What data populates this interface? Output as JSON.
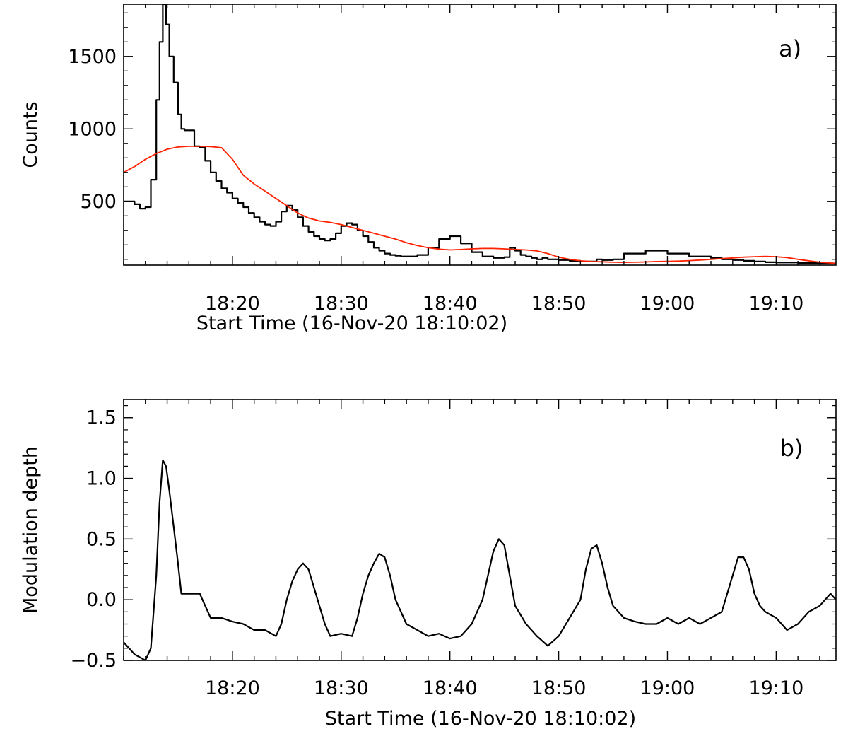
{
  "chart_data": [
    {
      "type": "line",
      "panel_label": "a)",
      "xlabel": "Start Time (16-Nov-20 18:10:02)",
      "ylabel": "Counts",
      "x_unit": "minutes after 18:10",
      "xlim": [
        0,
        65.5
      ],
      "ylim": [
        60,
        1860
      ],
      "x_ticks": [
        {
          "value": 10,
          "label": "18:20"
        },
        {
          "value": 20,
          "label": "18:30"
        },
        {
          "value": 30,
          "label": "18:40"
        },
        {
          "value": 40,
          "label": "18:50"
        },
        {
          "value": 50,
          "label": "19:00"
        },
        {
          "value": 60,
          "label": "19:10"
        }
      ],
      "y_ticks": [
        {
          "value": 500,
          "label": "500"
        },
        {
          "value": 1000,
          "label": "1000"
        },
        {
          "value": 1500,
          "label": "1500"
        }
      ],
      "series": [
        {
          "color": "#000000",
          "style": "step",
          "x": [
            0,
            1,
            1.5,
            2,
            2.5,
            3,
            3.3,
            3.6,
            3.9,
            4.2,
            4.6,
            5.0,
            5.3,
            5.6,
            6.0,
            6.5,
            7.0,
            7.5,
            8.0,
            8.5,
            9.0,
            9.5,
            10.0,
            10.5,
            11.0,
            11.5,
            12.0,
            12.5,
            13.0,
            13.5,
            14.0,
            14.5,
            15.0,
            15.5,
            16.0,
            16.5,
            17.0,
            17.5,
            18.0,
            18.5,
            19.0,
            19.5,
            20.0,
            20.5,
            21.0,
            21.5,
            22.0,
            22.5,
            23.0,
            23.5,
            24.0,
            24.5,
            25.0,
            25.5,
            26.0,
            27.0,
            28.0,
            29.0,
            30.0,
            31.0,
            32.0,
            33.0,
            34.0,
            35.0,
            35.5,
            36.0,
            36.5,
            37.0,
            37.5,
            38.0,
            38.5,
            39.0,
            40.0,
            41.0,
            42.0,
            43.0,
            43.5,
            44.0,
            45.0,
            46.0,
            48.0,
            50.0,
            52.0,
            54.0,
            55.0,
            56.0,
            57.0,
            58.0,
            59.0,
            60.0,
            62.0,
            64.0,
            65.5
          ],
          "y": [
            500,
            480,
            450,
            460,
            650,
            1200,
            1600,
            1860,
            1720,
            1500,
            1320,
            1100,
            1000,
            990,
            990,
            880,
            870,
            780,
            700,
            640,
            590,
            560,
            520,
            490,
            460,
            420,
            390,
            360,
            340,
            330,
            360,
            430,
            470,
            440,
            390,
            330,
            290,
            260,
            240,
            230,
            240,
            280,
            330,
            350,
            340,
            300,
            260,
            220,
            180,
            160,
            140,
            130,
            125,
            120,
            120,
            130,
            180,
            240,
            260,
            210,
            150,
            120,
            110,
            115,
            180,
            160,
            130,
            120,
            110,
            100,
            110,
            100,
            95,
            90,
            85,
            85,
            100,
            95,
            100,
            140,
            160,
            140,
            120,
            110,
            100,
            95,
            90,
            85,
            80,
            78,
            75,
            72,
            70
          ]
        },
        {
          "color": "#ff2200",
          "style": "smooth",
          "x": [
            0,
            1,
            2,
            3,
            4,
            5,
            6,
            7,
            8,
            9,
            10,
            11,
            12,
            13,
            14,
            15,
            16,
            17,
            18,
            19,
            20,
            21,
            22,
            23,
            24,
            25,
            26,
            27,
            28,
            29,
            30,
            31,
            32,
            33,
            34,
            35,
            36,
            37,
            38,
            39,
            40,
            41,
            42,
            43,
            44,
            45,
            46,
            47,
            48,
            49,
            50,
            51,
            52,
            53,
            54,
            55,
            56,
            57,
            58,
            59,
            60,
            61,
            62,
            63,
            64,
            65.5
          ],
          "y": [
            700,
            740,
            790,
            830,
            860,
            875,
            880,
            880,
            878,
            870,
            790,
            680,
            620,
            570,
            520,
            470,
            420,
            385,
            365,
            355,
            340,
            320,
            300,
            280,
            260,
            240,
            215,
            195,
            180,
            170,
            165,
            168,
            172,
            175,
            175,
            172,
            168,
            165,
            158,
            140,
            115,
            100,
            90,
            85,
            83,
            80,
            79,
            80,
            82,
            85,
            86,
            88,
            91,
            95,
            100,
            105,
            110,
            115,
            118,
            120,
            118,
            112,
            100,
            90,
            80,
            72
          ]
        }
      ]
    },
    {
      "type": "line",
      "panel_label": "b)",
      "xlabel": "Start Time (16-Nov-20 18:10:02)",
      "ylabel": "Modulation depth",
      "x_unit": "minutes after 18:10",
      "xlim": [
        0,
        65.5
      ],
      "ylim": [
        -0.5,
        1.65
      ],
      "x_ticks": [
        {
          "value": 10,
          "label": "18:20"
        },
        {
          "value": 20,
          "label": "18:30"
        },
        {
          "value": 30,
          "label": "18:40"
        },
        {
          "value": 40,
          "label": "18:50"
        },
        {
          "value": 50,
          "label": "19:00"
        },
        {
          "value": 60,
          "label": "19:10"
        }
      ],
      "y_ticks": [
        {
          "value": -0.5,
          "label": "−0.5"
        },
        {
          "value": 0.0,
          "label": "0.0"
        },
        {
          "value": 0.5,
          "label": "0.5"
        },
        {
          "value": 1.0,
          "label": "1.0"
        },
        {
          "value": 1.5,
          "label": "1.5"
        }
      ],
      "series": [
        {
          "color": "#000000",
          "style": "line",
          "x": [
            0,
            1,
            2,
            2.5,
            3,
            3.3,
            3.6,
            3.9,
            4.2,
            4.6,
            5.0,
            5.3,
            5.6,
            6.0,
            6.5,
            7.0,
            7.5,
            8.0,
            9.0,
            10.0,
            11.0,
            12.0,
            13.0,
            14.0,
            14.5,
            15.0,
            15.5,
            16.0,
            16.5,
            17.0,
            17.5,
            18.0,
            18.5,
            19.0,
            20.0,
            21.0,
            21.5,
            22.0,
            22.5,
            23.0,
            23.5,
            24.0,
            24.5,
            25.0,
            26.0,
            27.0,
            28.0,
            29.0,
            30.0,
            31.0,
            32.0,
            33.0,
            33.5,
            34.0,
            34.5,
            35.0,
            35.5,
            36.0,
            37.0,
            38.0,
            39.0,
            40.0,
            41.0,
            42.0,
            42.5,
            43.0,
            43.5,
            44.0,
            44.5,
            45.0,
            46.0,
            47.0,
            48.0,
            49.0,
            50.0,
            51.0,
            52.0,
            53.0,
            54.0,
            55.0,
            55.5,
            56.0,
            56.5,
            57.0,
            57.5,
            58.0,
            58.5,
            59.0,
            60.0,
            61.0,
            62.0,
            63.0,
            64.0,
            65.0,
            65.5
          ],
          "y": [
            -0.35,
            -0.45,
            -0.5,
            -0.4,
            0.2,
            0.8,
            1.15,
            1.1,
            0.9,
            0.6,
            0.3,
            0.05,
            0.05,
            0.05,
            0.05,
            0.05,
            -0.05,
            -0.15,
            -0.15,
            -0.18,
            -0.2,
            -0.25,
            -0.25,
            -0.3,
            -0.2,
            0.0,
            0.15,
            0.25,
            0.3,
            0.25,
            0.1,
            -0.05,
            -0.2,
            -0.3,
            -0.28,
            -0.3,
            -0.15,
            0.05,
            0.2,
            0.3,
            0.38,
            0.35,
            0.2,
            0.0,
            -0.2,
            -0.25,
            -0.3,
            -0.28,
            -0.32,
            -0.3,
            -0.2,
            0.0,
            0.2,
            0.4,
            0.5,
            0.45,
            0.2,
            -0.05,
            -0.2,
            -0.3,
            -0.38,
            -0.3,
            -0.15,
            0.0,
            0.25,
            0.42,
            0.45,
            0.3,
            0.1,
            -0.05,
            -0.15,
            -0.18,
            -0.2,
            -0.2,
            -0.15,
            -0.2,
            -0.15,
            -0.2,
            -0.15,
            -0.1,
            0.05,
            0.2,
            0.35,
            0.35,
            0.25,
            0.05,
            -0.05,
            -0.1,
            -0.15,
            -0.25,
            -0.2,
            -0.1,
            -0.05,
            0.05,
            0.0
          ]
        }
      ]
    }
  ]
}
